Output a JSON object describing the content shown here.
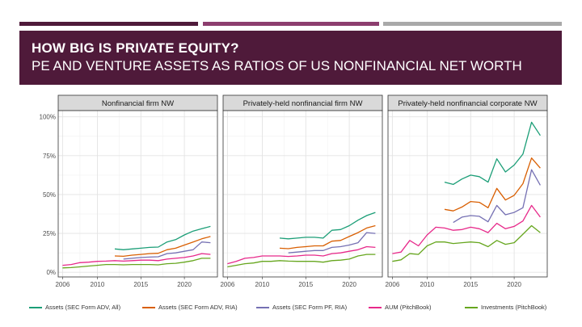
{
  "slide": {
    "title_line1": "HOW BIG IS PRIVATE EQUITY?",
    "title_line2": "PE AND VENTURE ASSETS AS RATIOS OF US NONFINANCIAL NET WORTH"
  },
  "chart_data": {
    "type": "line",
    "facet_titles": [
      "Nonfinancial firm NW",
      "Privately-held nonfinancial firm NW",
      "Privately-held nonfinancial corporate NW"
    ],
    "x_ticks": [
      "2006",
      "2010",
      "2015",
      "2020"
    ],
    "y_ticks": [
      "0%",
      "25%",
      "50%",
      "75%",
      "100%"
    ],
    "xlim": [
      2005.5,
      2023.8
    ],
    "ylim": [
      -3,
      104
    ],
    "legend_position": "bottom",
    "series_colors": [
      "#1b9e77",
      "#d95f02",
      "#7570b3",
      "#e7298a",
      "#66a61e"
    ],
    "legend": [
      "Assets (SEC Form ADV, All)",
      "Assets (SEC Form ADV, RIA)",
      "Assets (SEC Form PF, RIA)",
      "AUM (PitchBook)",
      "Investments (PitchBook)"
    ],
    "panels": [
      {
        "series": [
          {
            "x": [
              2012,
              2013,
              2014,
              2015,
              2016,
              2017,
              2018,
              2019,
              2020,
              2021,
              2022,
              2023
            ],
            "y": [
              15,
              14.5,
              15,
              15.5,
              16,
              16.2,
              19.5,
              21,
              24,
              26.5,
              28,
              29.5
            ]
          },
          {
            "x": [
              2012,
              2013,
              2014,
              2015,
              2016,
              2017,
              2018,
              2019,
              2020,
              2021,
              2022,
              2023
            ],
            "y": [
              10.5,
              10.3,
              11,
              11.5,
              12,
              12.2,
              14.5,
              15.5,
              17.5,
              19.5,
              21.5,
              23
            ]
          },
          {
            "x": [
              2013,
              2014,
              2015,
              2016,
              2017,
              2018,
              2019,
              2020,
              2021,
              2022,
              2023
            ],
            "y": [
              8.5,
              9,
              9.5,
              9.8,
              10,
              12,
              12.5,
              13.5,
              14.5,
              19.5,
              19
            ]
          },
          {
            "x": [
              2006,
              2007,
              2008,
              2009,
              2010,
              2011,
              2012,
              2013,
              2014,
              2015,
              2016,
              2017,
              2018,
              2019,
              2020,
              2021,
              2022,
              2023
            ],
            "y": [
              4.5,
              5,
              6.2,
              6.5,
              7,
              7.2,
              7.5,
              7.2,
              7.5,
              7.8,
              7.8,
              7.5,
              8.5,
              9,
              9.5,
              10.5,
              12,
              11.5
            ]
          },
          {
            "x": [
              2006,
              2007,
              2008,
              2009,
              2010,
              2011,
              2012,
              2013,
              2014,
              2015,
              2016,
              2017,
              2018,
              2019,
              2020,
              2021,
              2022,
              2023
            ],
            "y": [
              2.8,
              3,
              3.5,
              4,
              4.5,
              5,
              5,
              4.8,
              5,
              5,
              5,
              4.8,
              5.5,
              5.8,
              6.5,
              7.5,
              9,
              9
            ]
          }
        ]
      },
      {
        "series": [
          {
            "x": [
              2012,
              2013,
              2014,
              2015,
              2016,
              2017,
              2018,
              2019,
              2020,
              2021,
              2022,
              2023
            ],
            "y": [
              22,
              21.5,
              22,
              22.5,
              22.5,
              22,
              27,
              27.5,
              30,
              33.5,
              36.5,
              38.5
            ]
          },
          {
            "x": [
              2012,
              2013,
              2014,
              2015,
              2016,
              2017,
              2018,
              2019,
              2020,
              2021,
              2022,
              2023
            ],
            "y": [
              15.5,
              15.2,
              16,
              16.5,
              17,
              17,
              20,
              20.5,
              23,
              25.5,
              28.5,
              30
            ]
          },
          {
            "x": [
              2013,
              2014,
              2015,
              2016,
              2017,
              2018,
              2019,
              2020,
              2021,
              2022,
              2023
            ],
            "y": [
              12.5,
              13,
              13.5,
              14,
              14,
              16,
              16.5,
              17.5,
              19,
              25.5,
              25
            ]
          },
          {
            "x": [
              2006,
              2007,
              2008,
              2009,
              2010,
              2011,
              2012,
              2013,
              2014,
              2015,
              2016,
              2017,
              2018,
              2019,
              2020,
              2021,
              2022,
              2023
            ],
            "y": [
              5.5,
              7,
              9,
              9.5,
              10.5,
              10.5,
              10.5,
              10.2,
              10.5,
              11,
              11,
              10.5,
              12,
              12.5,
              13.5,
              14.5,
              16.5,
              16
            ]
          },
          {
            "x": [
              2006,
              2007,
              2008,
              2009,
              2010,
              2011,
              2012,
              2013,
              2014,
              2015,
              2016,
              2017,
              2018,
              2019,
              2020,
              2021,
              2022,
              2023
            ],
            "y": [
              3.5,
              4.5,
              5.5,
              6,
              7,
              7,
              7.5,
              7.2,
              7,
              7,
              7,
              6.5,
              7.5,
              7.8,
              8.5,
              10.5,
              11.5,
              11.5
            ]
          }
        ]
      },
      {
        "series": [
          {
            "x": [
              2012,
              2013,
              2014,
              2015,
              2016,
              2017,
              2018,
              2019,
              2020,
              2021,
              2022,
              2023
            ],
            "y": [
              58,
              56.5,
              60,
              62.5,
              61.5,
              58,
              73,
              64.5,
              69,
              76,
              96.5,
              88
            ]
          },
          {
            "x": [
              2012,
              2013,
              2014,
              2015,
              2016,
              2017,
              2018,
              2019,
              2020,
              2021,
              2022,
              2023
            ],
            "y": [
              40.5,
              39.5,
              42,
              45.5,
              45,
              41.5,
              54,
              46.5,
              49.5,
              57,
              73.5,
              67
            ]
          },
          {
            "x": [
              2013,
              2014,
              2015,
              2016,
              2017,
              2018,
              2019,
              2020,
              2021,
              2022,
              2023
            ],
            "y": [
              32,
              35.5,
              36.5,
              36,
              32.5,
              43,
              37,
              38.5,
              41.5,
              66,
              56
            ]
          },
          {
            "x": [
              2006,
              2007,
              2008,
              2009,
              2010,
              2011,
              2012,
              2013,
              2014,
              2015,
              2016,
              2017,
              2018,
              2019,
              2020,
              2021,
              2022,
              2023
            ],
            "y": [
              12,
              13,
              20.5,
              17,
              24,
              29,
              28.5,
              27,
              27.5,
              29,
              28,
              25.5,
              31.5,
              28,
              29.5,
              33,
              43,
              35.5
            ]
          },
          {
            "x": [
              2006,
              2007,
              2008,
              2009,
              2010,
              2011,
              2012,
              2013,
              2014,
              2015,
              2016,
              2017,
              2018,
              2019,
              2020,
              2021,
              2022,
              2023
            ],
            "y": [
              7,
              8,
              12,
              11.5,
              17,
              19.5,
              19.5,
              18.5,
              19,
              19.5,
              19,
              16.5,
              20.5,
              18,
              19,
              24.5,
              30,
              25.5
            ]
          }
        ]
      }
    ]
  }
}
